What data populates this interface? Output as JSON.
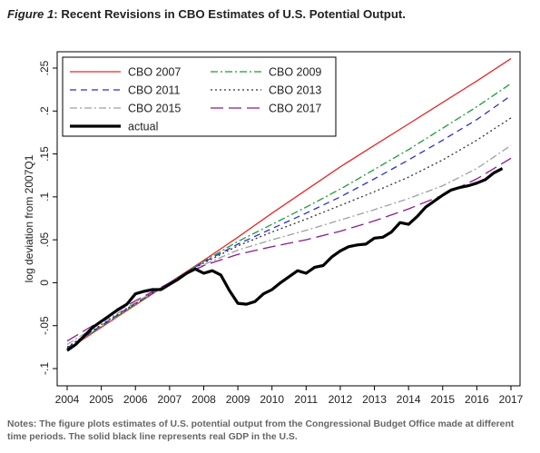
{
  "figure": {
    "label": "Figure 1",
    "title": "Recent Revisions in CBO Estimates of U.S. Potential Output.",
    "notes": "Notes: The figure plots estimates of U.S. potential output from the Congressional Budget Office made at different time periods. The solid black line represents real GDP in the U.S."
  },
  "chart_data": {
    "type": "line",
    "title": "Recent Revisions in CBO Estimates of U.S. Potential Output.",
    "xlabel": "",
    "ylabel": "log deviation from 2007Q1",
    "xlim": [
      2004,
      2017
    ],
    "ylim": [
      -0.1,
      0.25
    ],
    "x_ticks": [
      2004,
      2005,
      2006,
      2007,
      2008,
      2009,
      2010,
      2011,
      2012,
      2013,
      2014,
      2015,
      2016,
      2017
    ],
    "x_tick_labels": [
      "2004",
      "2005",
      "2006",
      "2007",
      "2008",
      "2009",
      "2010",
      "2011",
      "2012",
      "2013",
      "2014",
      "2015",
      "2016",
      "2017"
    ],
    "y_ticks": [
      -0.1,
      -0.05,
      0,
      0.05,
      0.1,
      0.15,
      0.2,
      0.25
    ],
    "y_tick_labels": [
      "-.1",
      "-.05",
      "0",
      ".05",
      ".1",
      ".15",
      ".2",
      ".25"
    ],
    "grid": false,
    "legend_position": "top-left",
    "series": [
      {
        "name": "CBO 2007",
        "color": "#e8262a",
        "dash": "solid",
        "width": 1.3,
        "x": [
          2004,
          2005,
          2006,
          2007,
          2008,
          2009,
          2010,
          2011,
          2012,
          2013,
          2014,
          2015,
          2016,
          2017
        ],
        "y": [
          -0.078,
          -0.052,
          -0.026,
          0.0,
          0.026,
          0.053,
          0.081,
          0.108,
          0.135,
          0.16,
          0.185,
          0.21,
          0.235,
          0.261
        ]
      },
      {
        "name": "CBO 2009",
        "color": "#1f9b3a",
        "dash": "dashdot",
        "width": 1.3,
        "x": [
          2004,
          2005,
          2006,
          2007,
          2008,
          2009,
          2010,
          2011,
          2012,
          2013,
          2014,
          2015,
          2016,
          2017
        ],
        "y": [
          -0.077,
          -0.051,
          -0.025,
          0.0,
          0.025,
          0.048,
          0.068,
          0.088,
          0.109,
          0.132,
          0.155,
          0.18,
          0.205,
          0.232
        ]
      },
      {
        "name": "CBO 2011",
        "color": "#2a2fd0",
        "dash": "dash",
        "width": 1.3,
        "x": [
          2004,
          2005,
          2006,
          2007,
          2008,
          2009,
          2010,
          2011,
          2012,
          2013,
          2014,
          2015,
          2016,
          2017
        ],
        "y": [
          -0.076,
          -0.05,
          -0.024,
          0.0,
          0.024,
          0.045,
          0.063,
          0.081,
          0.1,
          0.121,
          0.143,
          0.166,
          0.19,
          0.218
        ]
      },
      {
        "name": "CBO 2013",
        "color": "#333333",
        "dash": "dot",
        "width": 1.3,
        "x": [
          2004,
          2005,
          2006,
          2007,
          2008,
          2009,
          2010,
          2011,
          2012,
          2013,
          2014,
          2015,
          2016,
          2017
        ],
        "y": [
          -0.075,
          -0.049,
          -0.024,
          0.0,
          0.023,
          0.043,
          0.059,
          0.074,
          0.09,
          0.106,
          0.123,
          0.143,
          0.166,
          0.192
        ]
      },
      {
        "name": "CBO 2015",
        "color": "#9aa0a6",
        "dash": "dashdot",
        "width": 1.3,
        "x": [
          2004,
          2005,
          2006,
          2007,
          2008,
          2009,
          2010,
          2011,
          2012,
          2013,
          2014,
          2015,
          2016,
          2017
        ],
        "y": [
          -0.072,
          -0.047,
          -0.023,
          0.0,
          0.021,
          0.038,
          0.05,
          0.061,
          0.073,
          0.085,
          0.098,
          0.113,
          0.133,
          0.16
        ]
      },
      {
        "name": "CBO 2017",
        "color": "#8e1b8e",
        "dash": "longdash",
        "width": 1.3,
        "x": [
          2004,
          2005,
          2006,
          2007,
          2008,
          2009,
          2010,
          2011,
          2012,
          2013,
          2014,
          2015,
          2016,
          2017
        ],
        "y": [
          -0.068,
          -0.044,
          -0.021,
          0.0,
          0.02,
          0.033,
          0.042,
          0.05,
          0.06,
          0.072,
          0.086,
          0.102,
          0.121,
          0.145
        ]
      },
      {
        "name": "actual",
        "color": "#000000",
        "dash": "solid",
        "width": 3.2,
        "x": [
          2004.0,
          2004.25,
          2004.5,
          2004.75,
          2005.0,
          2005.25,
          2005.5,
          2005.75,
          2006.0,
          2006.25,
          2006.5,
          2006.75,
          2007.0,
          2007.25,
          2007.5,
          2007.75,
          2008.0,
          2008.25,
          2008.5,
          2008.75,
          2009.0,
          2009.25,
          2009.5,
          2009.75,
          2010.0,
          2010.25,
          2010.5,
          2010.75,
          2011.0,
          2011.25,
          2011.5,
          2011.75,
          2012.0,
          2012.25,
          2012.5,
          2012.75,
          2013.0,
          2013.25,
          2013.5,
          2013.75,
          2014.0,
          2014.25,
          2014.5,
          2014.75,
          2015.0,
          2015.25,
          2015.5,
          2015.75,
          2016.0,
          2016.25,
          2016.5,
          2016.75
        ],
        "y": [
          -0.079,
          -0.072,
          -0.062,
          -0.052,
          -0.045,
          -0.038,
          -0.031,
          -0.025,
          -0.013,
          -0.01,
          -0.008,
          -0.008,
          -0.002,
          0.004,
          0.011,
          0.016,
          0.011,
          0.014,
          0.009,
          -0.009,
          -0.024,
          -0.025,
          -0.022,
          -0.013,
          -0.008,
          0.0,
          0.007,
          0.014,
          0.011,
          0.018,
          0.02,
          0.03,
          0.037,
          0.042,
          0.044,
          0.045,
          0.052,
          0.053,
          0.059,
          0.07,
          0.068,
          0.077,
          0.088,
          0.095,
          0.102,
          0.108,
          0.111,
          0.113,
          0.116,
          0.12,
          0.128,
          0.133
        ]
      }
    ]
  }
}
